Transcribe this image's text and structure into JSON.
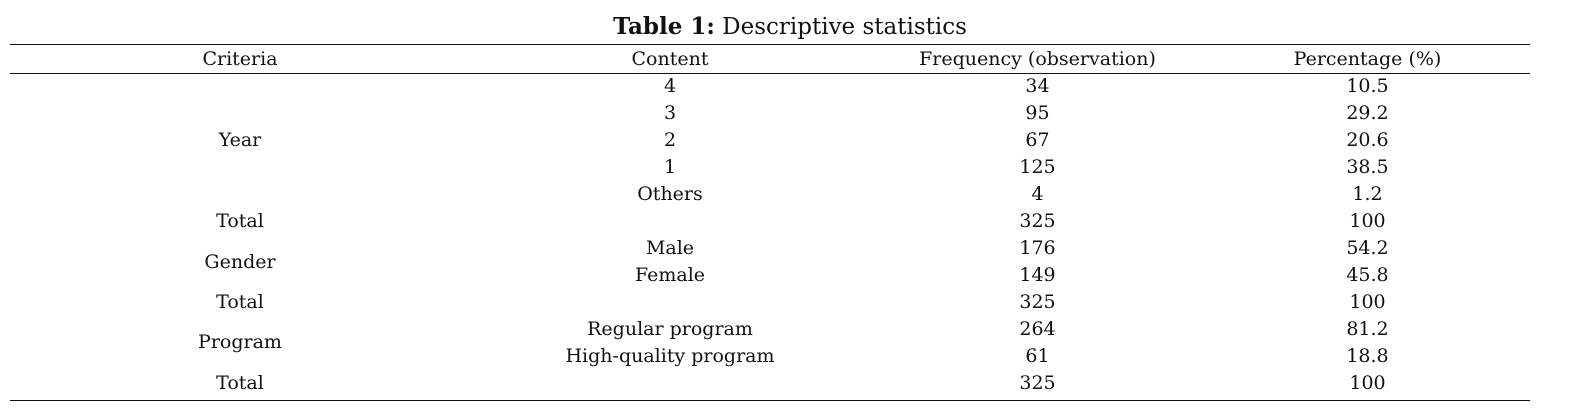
{
  "table": {
    "caption_label": "Table 1:",
    "caption_text": "Descriptive statistics",
    "headers": [
      "Criteria",
      "Content",
      "Frequency (observation)",
      "Percentage (%)"
    ],
    "rows": [
      {
        "criteria": "",
        "content": "4",
        "frequency": "34",
        "percentage": "10.5"
      },
      {
        "criteria": "",
        "content": "3",
        "frequency": "95",
        "percentage": "29.2"
      },
      {
        "criteria": "Year",
        "content": "2",
        "frequency": "67",
        "percentage": "20.6"
      },
      {
        "criteria": "",
        "content": "1",
        "frequency": "125",
        "percentage": "38.5"
      },
      {
        "criteria": "",
        "content": "Others",
        "frequency": "4",
        "percentage": "1.2"
      },
      {
        "criteria": "Total",
        "content": "",
        "frequency": "325",
        "percentage": "100"
      },
      {
        "criteria": "Gender",
        "content": "Male",
        "frequency": "176",
        "percentage": "54.2"
      },
      {
        "criteria": "",
        "content": "Female",
        "frequency": "149",
        "percentage": "45.8"
      },
      {
        "criteria": "Total",
        "content": "",
        "frequency": "325",
        "percentage": "100"
      },
      {
        "criteria": "Program",
        "content": "Regular program",
        "frequency": "264",
        "percentage": "81.2"
      },
      {
        "criteria": "",
        "content": "High-quality program",
        "frequency": "61",
        "percentage": "18.8"
      },
      {
        "criteria": "Total",
        "content": "",
        "frequency": "325",
        "percentage": "100"
      }
    ]
  }
}
